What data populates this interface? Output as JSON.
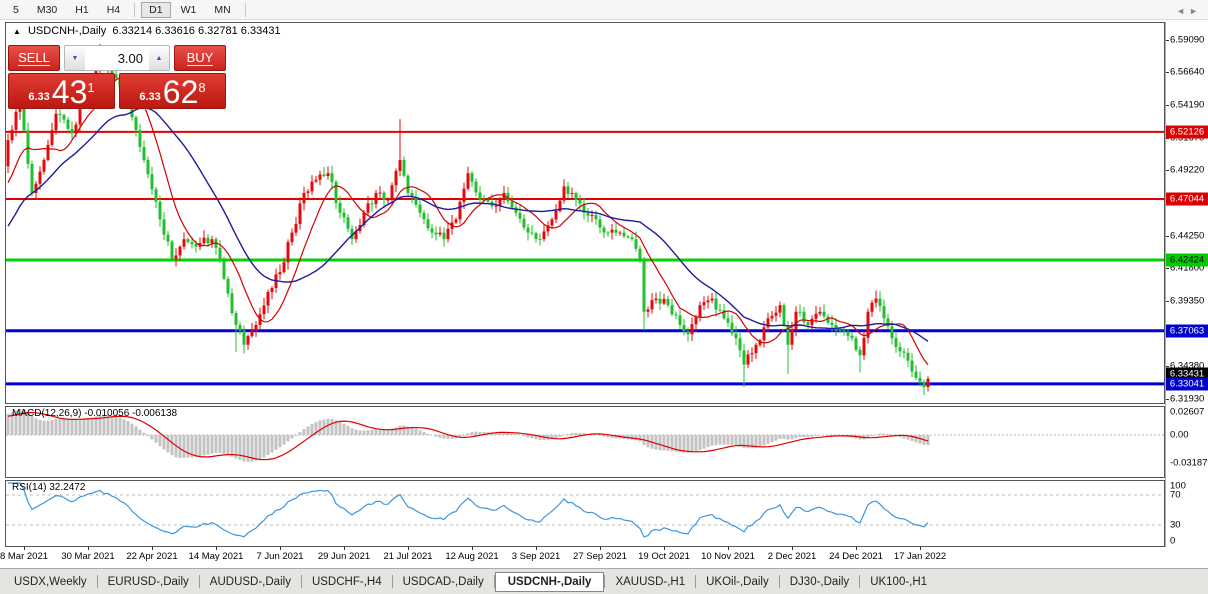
{
  "toolbar": {
    "items": [
      {
        "label": "5",
        "active": false,
        "sep_after": false
      },
      {
        "label": "M30",
        "active": false,
        "sep_after": false
      },
      {
        "label": "H1",
        "active": false,
        "sep_after": false
      },
      {
        "label": "H4",
        "active": false,
        "sep_after": true
      },
      {
        "label": "D1",
        "active": true,
        "sep_after": false
      },
      {
        "label": "W1",
        "active": false,
        "sep_after": false
      },
      {
        "label": "MN",
        "active": false,
        "sep_after": true
      }
    ]
  },
  "chart_header": {
    "collapse_icon": "▲",
    "symbol": "USDCNH-,Daily",
    "ohlc": "6.33214 6.33616 6.32781 6.33431"
  },
  "trade_widget": {
    "sell_label": "SELL",
    "buy_label": "BUY",
    "volume": "3.00",
    "bid": {
      "prefix": "6.33",
      "big": "43",
      "sup": "1"
    },
    "ask": {
      "prefix": "6.33",
      "big": "62",
      "sup": "8"
    }
  },
  "price_axis": {
    "labels": [
      {
        "text": "6.59090",
        "price": 6.5909
      },
      {
        "text": "6.56640",
        "price": 6.5664
      },
      {
        "text": "6.54190",
        "price": 6.5419
      },
      {
        "text": "6.51670",
        "price": 6.5167
      },
      {
        "text": "6.49220",
        "price": 6.4922
      },
      {
        "text": "6.46770",
        "price": 6.4677
      },
      {
        "text": "6.44250",
        "price": 6.4425
      },
      {
        "text": "6.41800",
        "price": 6.418
      },
      {
        "text": "6.39350",
        "price": 6.3935
      },
      {
        "text": "6.36890",
        "price": 6.3689
      },
      {
        "text": "6.34380",
        "price": 6.3438
      },
      {
        "text": "6.31930",
        "price": 6.3193
      }
    ]
  },
  "hlines": [
    {
      "price": 6.52126,
      "label": "6.52126",
      "line_color": "#e60000",
      "label_bg": "#dd0000",
      "label_fg": "#ffffff",
      "stroke": 2
    },
    {
      "price": 6.47044,
      "label": "6.47044",
      "line_color": "#e60000",
      "label_bg": "#dd0000",
      "label_fg": "#ffffff",
      "stroke": 2
    },
    {
      "price": 6.42424,
      "label": "6.42424",
      "line_color": "#00d400",
      "label_bg": "#00cc00",
      "label_fg": "#000000",
      "stroke": 3
    },
    {
      "price": 6.37063,
      "label": "6.37063",
      "line_color": "#0000d9",
      "label_bg": "#0000cc",
      "label_fg": "#ffffff",
      "stroke": 3
    },
    {
      "price": 6.33041,
      "label": "6.33041",
      "line_color": "#0000d9",
      "label_bg": "#0000cc",
      "label_fg": "#ffffff",
      "stroke": 3
    }
  ],
  "current_price": {
    "label": "6.33431",
    "price": 6.33431,
    "bg": "#000000",
    "fg": "#ffffff"
  },
  "indicators": {
    "macd": {
      "name": "MACD(12,26,9)",
      "values": "-0.010056 -0.006138",
      "axis": [
        {
          "text": "0.02607",
          "value": 0.02607
        },
        {
          "text": "0.00",
          "value": 0
        },
        {
          "text": "-0.03187",
          "value": -0.03187
        }
      ]
    },
    "rsi": {
      "name": "RSI(14)",
      "value": "32.2472",
      "axis": [
        {
          "text": "100",
          "value": 100
        },
        {
          "text": "70",
          "value": 70
        },
        {
          "text": "30",
          "value": 30
        },
        {
          "text": "0",
          "value": 0
        }
      ],
      "levels": [
        70,
        30
      ]
    }
  },
  "date_axis": {
    "labels": [
      "8 Mar 2021",
      "30 Mar 2021",
      "22 Apr 2021",
      "14 May 2021",
      "7 Jun 2021",
      "29 Jun 2021",
      "21 Jul 2021",
      "12 Aug 2021",
      "3 Sep 2021",
      "27 Sep 2021",
      "19 Oct 2021",
      "10 Nov 2021",
      "2 Dec 2021",
      "24 Dec 2021",
      "17 Jan 2022"
    ]
  },
  "tabs": {
    "items": [
      {
        "label": "USDX,Weekly",
        "active": false
      },
      {
        "label": "EURUSD-,Daily",
        "active": false
      },
      {
        "label": "AUDUSD-,Daily",
        "active": false
      },
      {
        "label": "USDCHF-,H4",
        "active": false
      },
      {
        "label": "USDCAD-,Daily",
        "active": false
      },
      {
        "label": "USDCNH-,Daily",
        "active": true
      },
      {
        "label": "XAUUSD-,H1",
        "active": false
      },
      {
        "label": "UKOil-,Daily",
        "active": false
      },
      {
        "label": "DJ30-,Daily",
        "active": false
      },
      {
        "label": "UK100-,H1",
        "active": false
      }
    ],
    "scroll_left": "◄",
    "scroll_right": "►"
  },
  "chart_data": {
    "type": "candlestick",
    "title": "USDCNH-,Daily",
    "bars": 231,
    "bull_color": "#e30b0e",
    "bear_color": "#22bf2c",
    "ma_fast": {
      "period": 10,
      "color": "#d40000"
    },
    "ma_slow": {
      "period": 26,
      "color": "#1c1c9e"
    },
    "macd_hist_color": "#c3c3c3",
    "macd_signal_color": "#e00000",
    "rsi_color": "#3d96e0",
    "close_anchors": [
      [
        0,
        6.515
      ],
      [
        3,
        6.545
      ],
      [
        6,
        6.475
      ],
      [
        9,
        6.5
      ],
      [
        12,
        6.535
      ],
      [
        16,
        6.52
      ],
      [
        20,
        6.555
      ],
      [
        23,
        6.575
      ],
      [
        26,
        6.565
      ],
      [
        30,
        6.545
      ],
      [
        34,
        6.5
      ],
      [
        38,
        6.455
      ],
      [
        41,
        6.425
      ],
      [
        44,
        6.44
      ],
      [
        48,
        6.437
      ],
      [
        51,
        6.44
      ],
      [
        54,
        6.41
      ],
      [
        57,
        6.375
      ],
      [
        59,
        6.36
      ],
      [
        62,
        6.375
      ],
      [
        65,
        6.4
      ],
      [
        68,
        6.415
      ],
      [
        71,
        6.445
      ],
      [
        74,
        6.475
      ],
      [
        77,
        6.485
      ],
      [
        80,
        6.49
      ],
      [
        83,
        6.46
      ],
      [
        86,
        6.44
      ],
      [
        89,
        6.46
      ],
      [
        92,
        6.475
      ],
      [
        95,
        6.47
      ],
      [
        98,
        6.5
      ],
      [
        100,
        6.475
      ],
      [
        103,
        6.46
      ],
      [
        106,
        6.445
      ],
      [
        109,
        6.44
      ],
      [
        112,
        6.455
      ],
      [
        115,
        6.49
      ],
      [
        118,
        6.47
      ],
      [
        121,
        6.465
      ],
      [
        124,
        6.475
      ],
      [
        127,
        6.46
      ],
      [
        130,
        6.445
      ],
      [
        133,
        6.44
      ],
      [
        136,
        6.455
      ],
      [
        139,
        6.48
      ],
      [
        141,
        6.475
      ],
      [
        144,
        6.46
      ],
      [
        147,
        6.455
      ],
      [
        150,
        6.445
      ],
      [
        153,
        6.445
      ],
      [
        156,
        6.44
      ],
      [
        158,
        6.425
      ],
      [
        159,
        6.385
      ],
      [
        162,
        6.395
      ],
      [
        165,
        6.39
      ],
      [
        168,
        6.375
      ],
      [
        170,
        6.368
      ],
      [
        173,
        6.39
      ],
      [
        176,
        6.395
      ],
      [
        179,
        6.38
      ],
      [
        182,
        6.365
      ],
      [
        184,
        6.345
      ],
      [
        187,
        6.36
      ],
      [
        190,
        6.38
      ],
      [
        193,
        6.39
      ],
      [
        195,
        6.36
      ],
      [
        197,
        6.385
      ],
      [
        200,
        6.375
      ],
      [
        203,
        6.385
      ],
      [
        206,
        6.375
      ],
      [
        209,
        6.37
      ],
      [
        211,
        6.365
      ],
      [
        213,
        6.352
      ],
      [
        215,
        6.385
      ],
      [
        217,
        6.395
      ],
      [
        219,
        6.38
      ],
      [
        221,
        6.365
      ],
      [
        223,
        6.355
      ],
      [
        225,
        6.348
      ],
      [
        227,
        6.335
      ],
      [
        229,
        6.328
      ],
      [
        230,
        6.3343
      ]
    ],
    "wick_overrides": {
      "23": {
        "high": 6.588
      },
      "57": {
        "low": 6.3545
      },
      "59": {
        "low": 6.3535
      },
      "98": {
        "high": 6.531
      },
      "159": {
        "low": 6.371
      },
      "170": {
        "low": 6.3625
      },
      "184": {
        "low": 6.328
      },
      "195": {
        "low": 6.338
      },
      "213": {
        "low": 6.339
      },
      "217": {
        "high": 6.401
      },
      "229": {
        "low": 6.322
      }
    }
  }
}
